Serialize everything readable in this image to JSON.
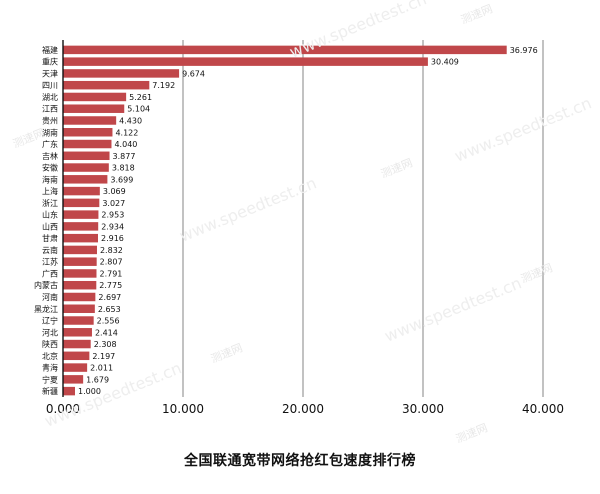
{
  "chart_data": {
    "type": "bar",
    "orientation": "horizontal",
    "title": "全国联通宽带网络抢红包速度排行榜",
    "categories": [
      "福建",
      "重庆",
      "天津",
      "四川",
      "湖北",
      "江西",
      "贵州",
      "湖南",
      "广东",
      "吉林",
      "安徽",
      "海南",
      "上海",
      "浙江",
      "山东",
      "山西",
      "甘肃",
      "云南",
      "江苏",
      "广西",
      "内蒙古",
      "河南",
      "黑龙江",
      "辽宁",
      "河北",
      "陕西",
      "北京",
      "青海",
      "宁夏",
      "新疆"
    ],
    "values": [
      36.976,
      30.409,
      9.674,
      7.192,
      5.261,
      5.104,
      4.43,
      4.122,
      4.04,
      3.877,
      3.818,
      3.699,
      3.069,
      3.027,
      2.953,
      2.934,
      2.916,
      2.832,
      2.807,
      2.791,
      2.775,
      2.697,
      2.653,
      2.556,
      2.414,
      2.308,
      2.197,
      2.011,
      1.679,
      1.0
    ],
    "value_labels": [
      "36.976",
      "30.409",
      "9.674",
      "7.192",
      "5.261",
      "5.104",
      "4.430",
      "4.122",
      "4.040",
      "3.877",
      "3.818",
      "3.699",
      "3.069",
      "3.027",
      "2.953",
      "2.934",
      "2.916",
      "2.832",
      "2.807",
      "2.791",
      "2.775",
      "2.697",
      "2.653",
      "2.556",
      "2.414",
      "2.308",
      "2.197",
      "2.011",
      "1.679",
      "1.000"
    ],
    "xlim": [
      0,
      40
    ],
    "xticks": [
      "0.000",
      "10.000",
      "20.000",
      "30.000",
      "40.000"
    ],
    "grid": "vertical",
    "bar_color": "#c0474a"
  },
  "watermarks": {
    "site": "www.speedtest.cn",
    "logo": "测速网"
  }
}
